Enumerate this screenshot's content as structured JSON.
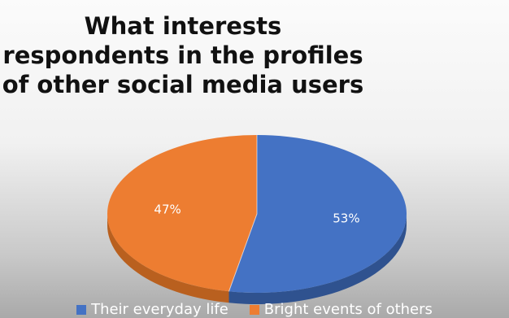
{
  "chart_data": {
    "type": "pie",
    "title": "What interests respondents in the profiles of other social media users",
    "categories": [
      "Their everyday life",
      "Bright events of others"
    ],
    "values": [
      53,
      47
    ],
    "data_labels": [
      "53%",
      "47%"
    ],
    "colors": [
      "#4472C4",
      "#ED7D31"
    ],
    "shadow_colors": [
      "#2F528F",
      "#B9601F"
    ],
    "style": "3d",
    "legend": "bottom"
  }
}
